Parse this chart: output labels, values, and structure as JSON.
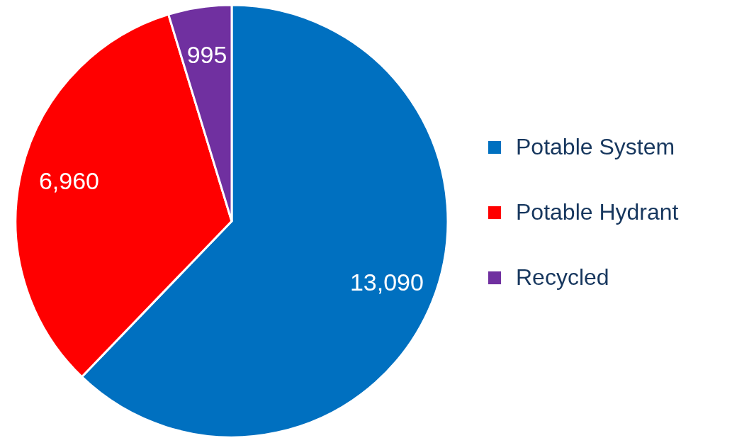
{
  "chart_data": {
    "type": "pie",
    "categories": [
      "Potable System",
      "Potable Hydrant",
      "Recycled"
    ],
    "values": [
      13090,
      6960,
      995
    ],
    "colors": [
      "#0070c0",
      "#ff0000",
      "#7030a0"
    ],
    "value_labels": [
      "13,090",
      "6,960",
      "995"
    ],
    "legend": "right"
  }
}
